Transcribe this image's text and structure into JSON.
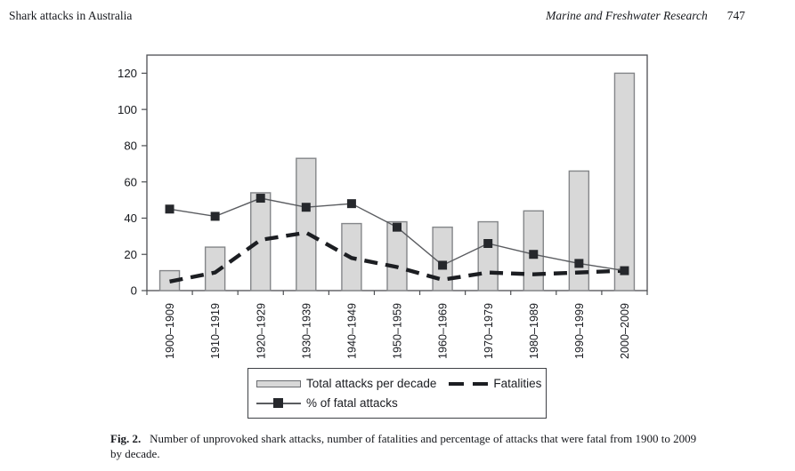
{
  "header": {
    "running_title": "Shark attacks in Australia",
    "journal_name": "Marine and Freshwater Research",
    "page_number": "747"
  },
  "chart_data": {
    "type": "bar",
    "title": "",
    "xlabel": "",
    "ylabel": "",
    "ylim": [
      0,
      130
    ],
    "yticks": [
      0,
      20,
      40,
      60,
      80,
      100,
      120
    ],
    "grid": false,
    "legend_position": "below",
    "categories": [
      "1900–1909",
      "1910–1919",
      "1920–1929",
      "1930–1939",
      "1940–1949",
      "1950–1959",
      "1960–1969",
      "1970–1979",
      "1980–1989",
      "1990–1999",
      "2000–2009"
    ],
    "series": [
      {
        "name": "Total attacks per decade",
        "type": "bar",
        "values": [
          11,
          24,
          54,
          73,
          37,
          38,
          35,
          38,
          44,
          66,
          120
        ],
        "fill": "#d8d8d8",
        "stroke": "#848689"
      },
      {
        "name": "Fatalities",
        "type": "line-dashed",
        "values": [
          5,
          10,
          28,
          32,
          18,
          13,
          6,
          10,
          9,
          10,
          11
        ],
        "color": "#1c1e22"
      },
      {
        "name": "% of fatal attacks",
        "type": "line-square-marker",
        "values": [
          45,
          41,
          51,
          46,
          48,
          35,
          14,
          26,
          20,
          15,
          11
        ],
        "line_color": "#5a5c60",
        "marker_color": "#26282c"
      }
    ],
    "axis_color": "#4d4f53"
  },
  "caption": {
    "label": "Fig. 2.",
    "text": "Number of unprovoked shark attacks, number of fatalities and percentage of attacks that were fatal from 1900 to 2009 by decade."
  }
}
